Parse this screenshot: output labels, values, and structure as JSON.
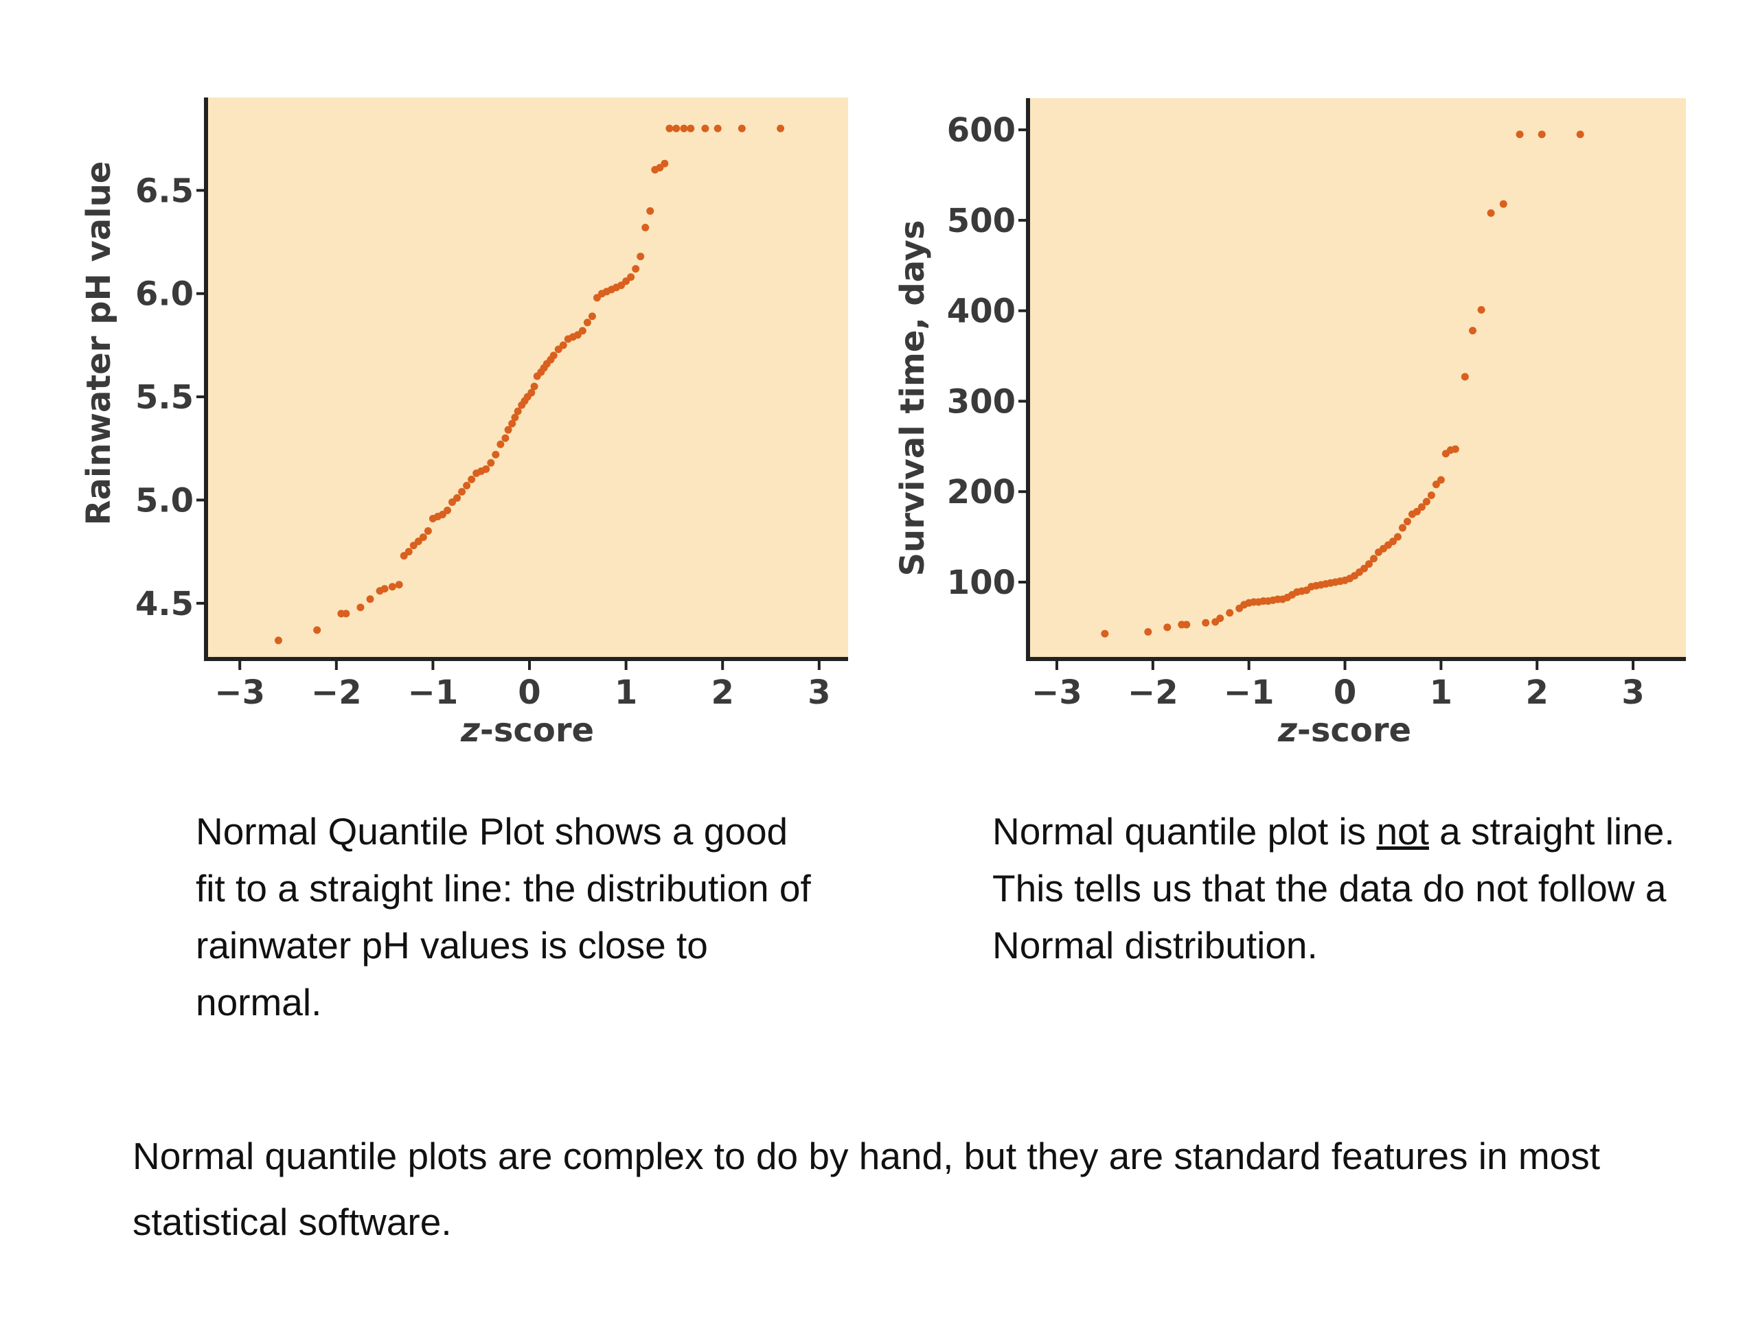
{
  "colors": {
    "panel_bg": "#fbe6bf",
    "point": "#d9601e",
    "axis": "#222222"
  },
  "chart_data": [
    {
      "type": "scatter",
      "xlabel_italic": "z",
      "xlabel_rest": "-score",
      "ylabel": "Rainwater pH value",
      "xlim": [
        -3.35,
        3.3
      ],
      "ylim": [
        4.23,
        6.95
      ],
      "xticks": [
        -3,
        -2,
        -1,
        0,
        1,
        2,
        3
      ],
      "xtick_labels": [
        "−3",
        "−2",
        "−1",
        "0",
        "1",
        "2",
        "3"
      ],
      "yticks": [
        4.5,
        5.0,
        5.5,
        6.0,
        6.5
      ],
      "ytick_labels": [
        "4.5",
        "5.0",
        "5.5",
        "6.0",
        "6.5"
      ],
      "grid": false,
      "x": [
        -2.6,
        -2.2,
        -1.95,
        -1.9,
        -1.75,
        -1.65,
        -1.55,
        -1.5,
        -1.42,
        -1.35,
        -1.3,
        -1.25,
        -1.2,
        -1.15,
        -1.1,
        -1.05,
        -1.0,
        -0.95,
        -0.9,
        -0.85,
        -0.8,
        -0.75,
        -0.7,
        -0.65,
        -0.6,
        -0.55,
        -0.5,
        -0.45,
        -0.4,
        -0.35,
        -0.3,
        -0.25,
        -0.22,
        -0.18,
        -0.15,
        -0.12,
        -0.08,
        -0.05,
        -0.02,
        0.02,
        0.05,
        0.08,
        0.12,
        0.15,
        0.18,
        0.22,
        0.25,
        0.3,
        0.35,
        0.4,
        0.45,
        0.5,
        0.55,
        0.6,
        0.65,
        0.7,
        0.75,
        0.8,
        0.85,
        0.9,
        0.95,
        1.0,
        1.05,
        1.1,
        1.15,
        1.2,
        1.25,
        1.3,
        1.35,
        1.4,
        1.45,
        1.52,
        1.6,
        1.67,
        1.82,
        1.95,
        2.2,
        2.6
      ],
      "y": [
        4.32,
        4.37,
        4.45,
        4.45,
        4.48,
        4.52,
        4.56,
        4.57,
        4.58,
        4.59,
        4.73,
        4.75,
        4.78,
        4.8,
        4.82,
        4.85,
        4.91,
        4.92,
        4.93,
        4.95,
        4.99,
        5.01,
        5.04,
        5.07,
        5.1,
        5.13,
        5.14,
        5.15,
        5.18,
        5.22,
        5.27,
        5.3,
        5.34,
        5.37,
        5.4,
        5.43,
        5.46,
        5.48,
        5.5,
        5.52,
        5.55,
        5.6,
        5.62,
        5.64,
        5.66,
        5.68,
        5.7,
        5.73,
        5.75,
        5.78,
        5.79,
        5.8,
        5.82,
        5.86,
        5.89,
        5.98,
        6.0,
        6.01,
        6.02,
        6.03,
        6.04,
        6.06,
        6.08,
        6.12,
        6.18,
        6.32,
        6.4,
        6.6,
        6.61,
        6.63,
        6.8,
        6.8,
        6.8,
        6.8,
        6.8,
        6.8,
        6.8,
        6.8
      ]
    },
    {
      "type": "scatter",
      "xlabel_italic": "z",
      "xlabel_rest": "-score",
      "ylabel": "Survival time, days",
      "xlim": [
        -3.3,
        3.55
      ],
      "ylim": [
        15,
        635
      ],
      "xticks": [
        -3,
        -2,
        -1,
        0,
        1,
        2,
        3
      ],
      "xtick_labels": [
        "−3",
        "−2",
        "−1",
        "0",
        "1",
        "2",
        "3"
      ],
      "yticks": [
        100,
        200,
        300,
        400,
        500,
        600
      ],
      "ytick_labels": [
        "100",
        "200",
        "300",
        "400",
        "500",
        "600"
      ],
      "grid": false,
      "x": [
        -2.5,
        -2.05,
        -1.85,
        -1.7,
        -1.65,
        -1.45,
        -1.35,
        -1.3,
        -1.2,
        -1.1,
        -1.05,
        -1.0,
        -0.95,
        -0.9,
        -0.85,
        -0.8,
        -0.75,
        -0.7,
        -0.65,
        -0.6,
        -0.55,
        -0.5,
        -0.45,
        -0.4,
        -0.35,
        -0.3,
        -0.25,
        -0.2,
        -0.15,
        -0.1,
        -0.05,
        0.0,
        0.05,
        0.1,
        0.15,
        0.2,
        0.25,
        0.3,
        0.35,
        0.4,
        0.45,
        0.5,
        0.55,
        0.6,
        0.65,
        0.7,
        0.75,
        0.8,
        0.85,
        0.9,
        0.95,
        1.0,
        1.05,
        1.1,
        1.15,
        1.25,
        1.33,
        1.42,
        1.52,
        1.65,
        1.82,
        2.05,
        2.45
      ],
      "y": [
        43,
        45,
        50,
        53,
        53,
        55,
        56,
        60,
        66,
        71,
        75,
        77,
        78,
        78,
        79,
        79,
        80,
        81,
        81,
        83,
        86,
        89,
        90,
        91,
        95,
        96,
        97,
        98,
        99,
        100,
        101,
        102,
        104,
        107,
        111,
        115,
        120,
        126,
        133,
        137,
        141,
        145,
        150,
        160,
        167,
        175,
        178,
        183,
        189,
        196,
        208,
        213,
        242,
        246,
        247,
        327,
        378,
        401,
        508,
        518,
        595,
        595,
        595
      ]
    }
  ],
  "captions": {
    "left": "Normal Quantile Plot shows a good fit to a straight line: the distribution of rainwater pH values is close to normal.",
    "right_part1": "Normal quantile plot is ",
    "right_underlined": "not",
    "right_part2": " a straight line. This tells us that the data do not follow a Normal distribution."
  },
  "footer": "Normal quantile plots are complex to do by hand, but they are standard features in most statistical software."
}
